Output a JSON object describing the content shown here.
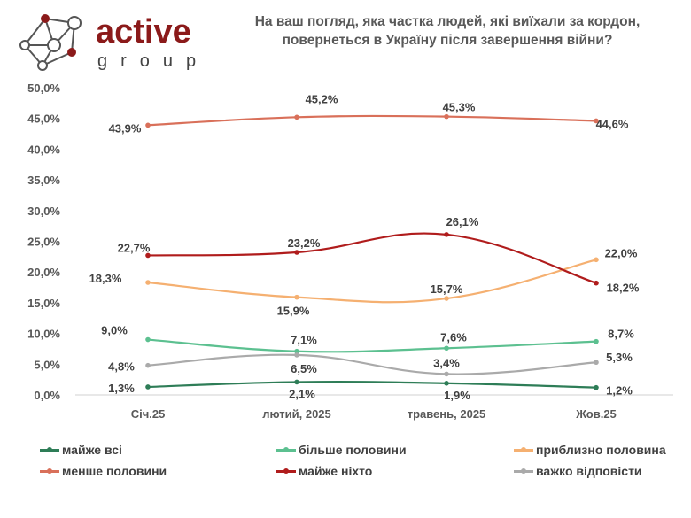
{
  "logo": {
    "word1": "active",
    "word2": "group",
    "brand_color": "#8b1a1a"
  },
  "chart_data": {
    "type": "line",
    "title": "На ваш погляд, яка частка людей, які виїхали за кордон, повернеться в Україну після завершення війни?",
    "categories": [
      "Січ.25",
      "лютий, 2025",
      "травень, 2025",
      "Жов.25"
    ],
    "ylim": [
      0,
      50
    ],
    "yticks": [
      "0,0%",
      "5,0%",
      "10,0%",
      "15,0%",
      "20,0%",
      "25,0%",
      "30,0%",
      "35,0%",
      "40,0%",
      "45,0%",
      "50,0%"
    ],
    "grid": false,
    "legend_position": "bottom",
    "series": [
      {
        "name": "майже всі",
        "color": "#2e7d57",
        "values": [
          1.3,
          2.1,
          1.9,
          1.2
        ],
        "labels": [
          "1,3%",
          "2,1%",
          "1,9%",
          "1,2%"
        ]
      },
      {
        "name": "більше половини",
        "color": "#5cc090",
        "values": [
          9.0,
          7.1,
          7.6,
          8.7
        ],
        "labels": [
          "9,0%",
          "7,1%",
          "7,6%",
          "8,7%"
        ]
      },
      {
        "name": "приблизно половина",
        "color": "#f5b071",
        "values": [
          18.3,
          15.9,
          15.7,
          22.0
        ],
        "labels": [
          "18,3%",
          "15,9%",
          "15,7%",
          "22,0%"
        ]
      },
      {
        "name": "менше половини",
        "color": "#d9705a",
        "values": [
          43.9,
          45.2,
          45.3,
          44.6
        ],
        "labels": [
          "43,9%",
          "45,2%",
          "45,3%",
          "44,6%"
        ]
      },
      {
        "name": "майже ніхто",
        "color": "#b01c1c",
        "values": [
          22.7,
          23.2,
          26.1,
          18.2
        ],
        "labels": [
          "22,7%",
          "23,2%",
          "26,1%",
          "18,2%"
        ]
      },
      {
        "name": "важко відповісти",
        "color": "#aaaaaa",
        "values": [
          4.8,
          6.5,
          3.4,
          5.3
        ],
        "labels": [
          "4,8%",
          "6,5%",
          "3,4%",
          "5,3%"
        ]
      }
    ]
  }
}
